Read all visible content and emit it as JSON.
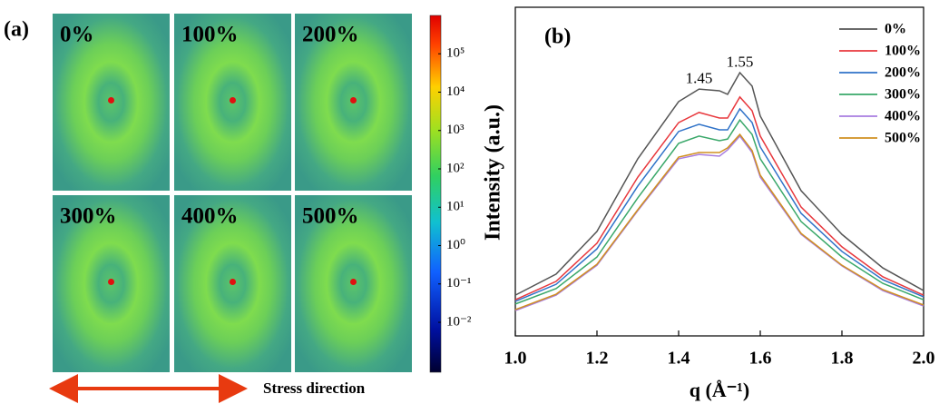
{
  "panel_a": {
    "label": "(a)",
    "images": [
      "0%",
      "100%",
      "200%",
      "300%",
      "400%",
      "500%"
    ],
    "colorbar": {
      "scale": "log",
      "lim": [
        0.0005,
        1000000
      ],
      "ticks": [
        {
          "value": 100000,
          "label": "10⁵"
        },
        {
          "value": 10000,
          "label": "10⁴"
        },
        {
          "value": 1000,
          "label": "10³"
        },
        {
          "value": 100,
          "label": "10²"
        },
        {
          "value": 10,
          "label": "10¹"
        },
        {
          "value": 1,
          "label": "10⁰"
        },
        {
          "value": 0.1,
          "label": "10⁻¹"
        },
        {
          "value": 0.01,
          "label": "10⁻²"
        }
      ]
    },
    "arrow_label": "Stress direction"
  },
  "chart_data": {
    "type": "line",
    "panel_label": "(b)",
    "x_label": "q (Å⁻¹)",
    "y_label": "Intensity (a.u.)",
    "x": [
      1.0,
      1.1,
      1.2,
      1.3,
      1.4,
      1.45,
      1.5,
      1.52,
      1.55,
      1.58,
      1.6,
      1.7,
      1.8,
      1.9,
      2.0
    ],
    "series": [
      {
        "name": "0%",
        "color": "#555555",
        "values": [
          12.4,
          18.8,
          31.8,
          53.9,
          71.3,
          75.1,
          74.6,
          73.5,
          80.1,
          76,
          66.9,
          44.2,
          30.9,
          20.7,
          13.8
        ]
      },
      {
        "name": "100%",
        "color": "#e8383d",
        "values": [
          11,
          16.6,
          28.2,
          48.3,
          64.9,
          68,
          66.3,
          66.3,
          72.7,
          68.5,
          60.8,
          39.2,
          27.1,
          18,
          12.4
        ]
      },
      {
        "name": "200%",
        "color": "#2f72c8",
        "values": [
          10.5,
          15.7,
          26.5,
          45.6,
          62.2,
          64.4,
          62.7,
          62.7,
          69.1,
          64.9,
          57.5,
          37.3,
          25.7,
          17.1,
          11.9
        ]
      },
      {
        "name": "300%",
        "color": "#3aa86a",
        "values": [
          9.7,
          14.4,
          24,
          42,
          58.6,
          60.8,
          59.4,
          59.9,
          65.7,
          61.3,
          53.9,
          34.8,
          24,
          16,
          11
        ]
      },
      {
        "name": "400%",
        "color": "#a87de0",
        "values": [
          7.7,
          12.4,
          21.5,
          38.1,
          53.9,
          55.2,
          54.7,
          56.6,
          60.8,
          55.8,
          48.3,
          30.9,
          21.3,
          13.8,
          9.1
        ]
      },
      {
        "name": "500%",
        "color": "#d09020",
        "values": [
          8,
          12.7,
          21.8,
          38.4,
          54.4,
          55.8,
          55.8,
          57.2,
          61.3,
          56.4,
          48.9,
          31.2,
          21.5,
          14.1,
          9.4
        ]
      }
    ],
    "xlim": [
      1.0,
      2.0
    ],
    "ylim": [
      0,
      100
    ],
    "xticks": [
      {
        "value": 1.0,
        "label": "1.0"
      },
      1.2,
      1.4,
      1.6,
      1.8,
      {
        "value": 2.0,
        "label": "2.0"
      }
    ],
    "annotations": [
      {
        "text": "1.45",
        "x": 1.45,
        "y": 78
      },
      {
        "text": "1.55",
        "x": 1.55,
        "y": 83
      }
    ],
    "legend": "upper right"
  }
}
